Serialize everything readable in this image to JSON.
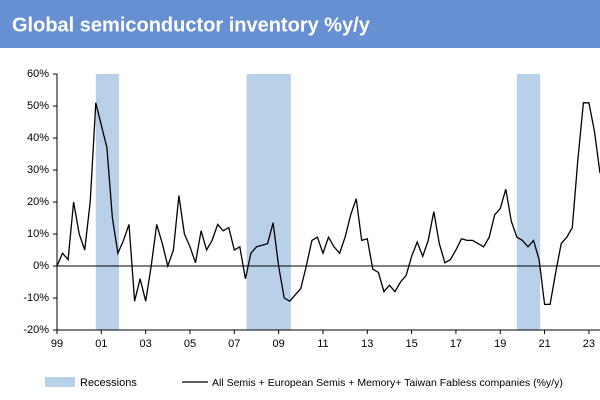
{
  "chart_data": {
    "type": "line",
    "title": "Global semiconductor inventory %y/y",
    "x": [
      1999,
      1999.25,
      1999.5,
      1999.75,
      2000,
      2000.25,
      2000.5,
      2000.75,
      2001,
      2001.25,
      2001.5,
      2001.75,
      2002,
      2002.25,
      2002.5,
      2002.75,
      2003,
      2003.25,
      2003.5,
      2003.75,
      2004,
      2004.25,
      2004.5,
      2004.75,
      2005,
      2005.25,
      2005.5,
      2005.75,
      2006,
      2006.25,
      2006.5,
      2006.75,
      2007,
      2007.25,
      2007.5,
      2007.75,
      2008,
      2008.25,
      2008.5,
      2008.75,
      2009,
      2009.25,
      2009.5,
      2009.75,
      2010,
      2010.25,
      2010.5,
      2010.75,
      2011,
      2011.25,
      2011.5,
      2011.75,
      2012,
      2012.25,
      2012.5,
      2012.75,
      2013,
      2013.25,
      2013.5,
      2013.75,
      2014,
      2014.25,
      2014.5,
      2014.75,
      2015,
      2015.25,
      2015.5,
      2015.75,
      2016,
      2016.25,
      2016.5,
      2016.75,
      2017,
      2017.25,
      2017.5,
      2017.75,
      2018,
      2018.25,
      2018.5,
      2018.75,
      2019,
      2019.25,
      2019.5,
      2019.75,
      2020,
      2020.25,
      2020.5,
      2020.75,
      2021,
      2021.25,
      2021.5,
      2021.75,
      2022,
      2022.25,
      2022.5,
      2022.75,
      2023,
      2023.25,
      2023.5
    ],
    "series": [
      {
        "name": "All Semis + European Semis + Memory+ Taiwan Fabless companies (%y/y)",
        "color": "#000000",
        "values": [
          0,
          4,
          2,
          20,
          10,
          5,
          20,
          51,
          44,
          37,
          15,
          4,
          8,
          13,
          -11,
          -4,
          -11,
          0,
          13,
          7,
          0,
          5,
          22,
          10,
          6,
          1,
          11,
          5,
          8,
          13,
          11,
          12,
          5,
          6,
          -4,
          4,
          6,
          6.5,
          7,
          13.5,
          0,
          -10,
          -11,
          -9,
          -7,
          0,
          8,
          9,
          4,
          9,
          6,
          4,
          9,
          16,
          21,
          8,
          8.5,
          -1,
          -2,
          -8,
          -6,
          -8,
          -5,
          -3,
          3,
          7.5,
          3,
          8,
          17,
          7,
          1,
          2,
          5,
          8.5,
          8,
          8,
          7,
          6,
          9,
          16,
          18,
          24,
          14,
          9,
          8,
          6,
          8,
          2,
          -12,
          -12,
          -2,
          7,
          9,
          12,
          33,
          51,
          51,
          42,
          29
        ]
      }
    ],
    "recessions": {
      "name": "Recessions",
      "color": "#b8d0e8",
      "spans": [
        [
          2000.75,
          2001.8
        ],
        [
          2007.55,
          2009.55
        ],
        [
          2019.75,
          2020.8
        ]
      ]
    },
    "xlim": [
      1999,
      2023.5
    ],
    "xticks": [
      {
        "value": 1999,
        "label": "99"
      },
      {
        "value": 2001,
        "label": "01"
      },
      {
        "value": 2003,
        "label": "03"
      },
      {
        "value": 2005,
        "label": "05"
      },
      {
        "value": 2007,
        "label": "07"
      },
      {
        "value": 2009,
        "label": "09"
      },
      {
        "value": 2011,
        "label": "11"
      },
      {
        "value": 2013,
        "label": "13"
      },
      {
        "value": 2015,
        "label": "15"
      },
      {
        "value": 2017,
        "label": "17"
      },
      {
        "value": 2019,
        "label": "19"
      },
      {
        "value": 2021,
        "label": "21"
      },
      {
        "value": 2023,
        "label": "23"
      }
    ],
    "ylim": [
      -20,
      60
    ],
    "yticks": [
      {
        "value": -20,
        "label": "-20%"
      },
      {
        "value": -10,
        "label": "-10%"
      },
      {
        "value": 0,
        "label": "0%"
      },
      {
        "value": 10,
        "label": "10%"
      },
      {
        "value": 20,
        "label": "20%"
      },
      {
        "value": 30,
        "label": "30%"
      },
      {
        "value": 40,
        "label": "40%"
      },
      {
        "value": 50,
        "label": "50%"
      },
      {
        "value": 60,
        "label": "60%"
      }
    ]
  }
}
